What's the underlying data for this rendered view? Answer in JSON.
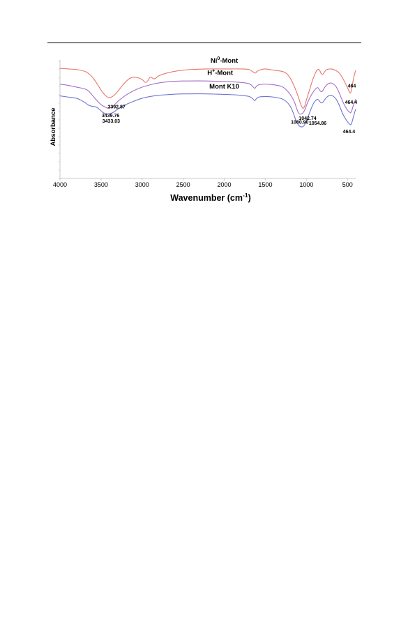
{
  "chart_data": {
    "type": "line",
    "xlabel": "Wavenumber (cm",
    "xlabel_superscript": "-1",
    "xlabel_suffix": ")",
    "ylabel": "Absorbance",
    "xlim": [
      4000,
      400
    ],
    "x_reversed": true,
    "x_ticks": [
      4000,
      3500,
      3000,
      2500,
      2000,
      1500,
      1000,
      500
    ],
    "y_ticks_labeled": false,
    "grid": false,
    "legend": "none",
    "series": [
      {
        "name": "Ni",
        "name_superscript": "0",
        "name_suffix": "-Mont",
        "color": "#e8756b",
        "points": [
          [
            4000,
            0.94
          ],
          [
            3900,
            0.935
          ],
          [
            3800,
            0.93
          ],
          [
            3700,
            0.915
          ],
          [
            3650,
            0.895
          ],
          [
            3600,
            0.86
          ],
          [
            3550,
            0.81
          ],
          [
            3500,
            0.755
          ],
          [
            3450,
            0.71
          ],
          [
            3400,
            0.69
          ],
          [
            3350,
            0.705
          ],
          [
            3300,
            0.74
          ],
          [
            3250,
            0.785
          ],
          [
            3200,
            0.825
          ],
          [
            3150,
            0.855
          ],
          [
            3100,
            0.865
          ],
          [
            3050,
            0.86
          ],
          [
            3000,
            0.845
          ],
          [
            2960,
            0.82
          ],
          [
            2930,
            0.835
          ],
          [
            2900,
            0.865
          ],
          [
            2850,
            0.85
          ],
          [
            2800,
            0.875
          ],
          [
            2700,
            0.9
          ],
          [
            2600,
            0.915
          ],
          [
            2500,
            0.925
          ],
          [
            2400,
            0.93
          ],
          [
            2200,
            0.935
          ],
          [
            2000,
            0.935
          ],
          [
            1800,
            0.935
          ],
          [
            1700,
            0.93
          ],
          [
            1650,
            0.91
          ],
          [
            1620,
            0.9
          ],
          [
            1600,
            0.915
          ],
          [
            1550,
            0.93
          ],
          [
            1500,
            0.935
          ],
          [
            1450,
            0.93
          ],
          [
            1400,
            0.925
          ],
          [
            1300,
            0.915
          ],
          [
            1250,
            0.9
          ],
          [
            1200,
            0.86
          ],
          [
            1150,
            0.79
          ],
          [
            1100,
            0.7
          ],
          [
            1070,
            0.635
          ],
          [
            1042.74,
            0.6
          ],
          [
            1020,
            0.62
          ],
          [
            1000,
            0.67
          ],
          [
            960,
            0.76
          ],
          [
            920,
            0.85
          ],
          [
            880,
            0.915
          ],
          [
            860,
            0.93
          ],
          [
            840,
            0.925
          ],
          [
            820,
            0.895
          ],
          [
            800,
            0.89
          ],
          [
            780,
            0.91
          ],
          [
            750,
            0.93
          ],
          [
            700,
            0.935
          ],
          [
            650,
            0.925
          ],
          [
            600,
            0.9
          ],
          [
            550,
            0.845
          ],
          [
            500,
            0.775
          ],
          [
            480,
            0.745
          ],
          [
            464,
            0.73
          ],
          [
            450,
            0.76
          ],
          [
            430,
            0.84
          ],
          [
            410,
            0.9
          ],
          [
            400,
            0.92
          ]
        ]
      },
      {
        "name": "H",
        "name_superscript": "+",
        "name_suffix": "-Mont",
        "color": "#a36fc9",
        "points": [
          [
            4000,
            0.805
          ],
          [
            3900,
            0.795
          ],
          [
            3800,
            0.78
          ],
          [
            3700,
            0.765
          ],
          [
            3650,
            0.745
          ],
          [
            3600,
            0.705
          ],
          [
            3550,
            0.665
          ],
          [
            3500,
            0.63
          ],
          [
            3450,
            0.61
          ],
          [
            3420,
            0.6
          ],
          [
            3380,
            0.605
          ],
          [
            3340,
            0.625
          ],
          [
            3300,
            0.655
          ],
          [
            3200,
            0.71
          ],
          [
            3100,
            0.75
          ],
          [
            3000,
            0.78
          ],
          [
            2900,
            0.8
          ],
          [
            2800,
            0.815
          ],
          [
            2700,
            0.825
          ],
          [
            2600,
            0.83
          ],
          [
            2500,
            0.832
          ],
          [
            2300,
            0.833
          ],
          [
            2100,
            0.83
          ],
          [
            1900,
            0.825
          ],
          [
            1800,
            0.82
          ],
          [
            1700,
            0.81
          ],
          [
            1660,
            0.79
          ],
          [
            1630,
            0.77
          ],
          [
            1610,
            0.785
          ],
          [
            1580,
            0.8
          ],
          [
            1500,
            0.805
          ],
          [
            1400,
            0.8
          ],
          [
            1300,
            0.785
          ],
          [
            1250,
            0.76
          ],
          [
            1200,
            0.72
          ],
          [
            1150,
            0.66
          ],
          [
            1120,
            0.6
          ],
          [
            1100,
            0.565
          ],
          [
            1080.9,
            0.55
          ],
          [
            1050,
            0.555
          ],
          [
            1020,
            0.585
          ],
          [
            990,
            0.64
          ],
          [
            950,
            0.7
          ],
          [
            910,
            0.745
          ],
          [
            880,
            0.77
          ],
          [
            860,
            0.775
          ],
          [
            840,
            0.755
          ],
          [
            820,
            0.74
          ],
          [
            800,
            0.75
          ],
          [
            780,
            0.775
          ],
          [
            750,
            0.8
          ],
          [
            710,
            0.815
          ],
          [
            680,
            0.81
          ],
          [
            640,
            0.785
          ],
          [
            600,
            0.73
          ],
          [
            560,
            0.66
          ],
          [
            520,
            0.605
          ],
          [
            490,
            0.575
          ],
          [
            470,
            0.565
          ],
          [
            464.4,
            0.56
          ],
          [
            450,
            0.575
          ],
          [
            430,
            0.62
          ],
          [
            410,
            0.66
          ],
          [
            400,
            0.675
          ]
        ]
      },
      {
        "name": "Mont K10",
        "name_superscript": "",
        "name_suffix": "",
        "color": "#6f73d1",
        "points": [
          [
            4000,
            0.705
          ],
          [
            3900,
            0.695
          ],
          [
            3800,
            0.685
          ],
          [
            3750,
            0.67
          ],
          [
            3700,
            0.65
          ],
          [
            3650,
            0.625
          ],
          [
            3600,
            0.615
          ],
          [
            3560,
            0.61
          ],
          [
            3520,
            0.59
          ],
          [
            3480,
            0.565
          ],
          [
            3450,
            0.555
          ],
          [
            3420,
            0.55
          ],
          [
            3400,
            0.552
          ],
          [
            3350,
            0.565
          ],
          [
            3300,
            0.59
          ],
          [
            3200,
            0.63
          ],
          [
            3100,
            0.66
          ],
          [
            3000,
            0.685
          ],
          [
            2900,
            0.7
          ],
          [
            2800,
            0.71
          ],
          [
            2700,
            0.715
          ],
          [
            2600,
            0.72
          ],
          [
            2500,
            0.722
          ],
          [
            2300,
            0.723
          ],
          [
            2100,
            0.72
          ],
          [
            1900,
            0.715
          ],
          [
            1800,
            0.71
          ],
          [
            1700,
            0.7
          ],
          [
            1660,
            0.685
          ],
          [
            1630,
            0.665
          ],
          [
            1610,
            0.68
          ],
          [
            1580,
            0.695
          ],
          [
            1500,
            0.7
          ],
          [
            1400,
            0.695
          ],
          [
            1300,
            0.68
          ],
          [
            1250,
            0.66
          ],
          [
            1200,
            0.62
          ],
          [
            1160,
            0.56
          ],
          [
            1130,
            0.5
          ],
          [
            1100,
            0.46
          ],
          [
            1080,
            0.445
          ],
          [
            1054.86,
            0.44
          ],
          [
            1030,
            0.45
          ],
          [
            1000,
            0.49
          ],
          [
            970,
            0.545
          ],
          [
            940,
            0.6
          ],
          [
            910,
            0.645
          ],
          [
            880,
            0.67
          ],
          [
            860,
            0.675
          ],
          [
            840,
            0.66
          ],
          [
            820,
            0.645
          ],
          [
            800,
            0.65
          ],
          [
            780,
            0.67
          ],
          [
            750,
            0.695
          ],
          [
            710,
            0.71
          ],
          [
            680,
            0.705
          ],
          [
            640,
            0.68
          ],
          [
            600,
            0.625
          ],
          [
            560,
            0.555
          ],
          [
            520,
            0.505
          ],
          [
            490,
            0.475
          ],
          [
            470,
            0.462
          ],
          [
            464.4,
            0.458
          ],
          [
            450,
            0.47
          ],
          [
            430,
            0.52
          ],
          [
            410,
            0.57
          ],
          [
            400,
            0.59
          ]
        ]
      }
    ],
    "annotations": [
      {
        "text": "3392.87",
        "x": 3392.87,
        "series": 0
      },
      {
        "text": "1042.74",
        "x": 1042.74,
        "series": 0
      },
      {
        "text": "464",
        "x": 464,
        "series": 0
      },
      {
        "text": "3439.76",
        "x": 3439.76,
        "series": 1
      },
      {
        "text": "1080.90",
        "x": 1080.9,
        "series": 1
      },
      {
        "text": "464.4",
        "x": 464.4,
        "series": 1
      },
      {
        "text": "3433.03",
        "x": 3433.03,
        "series": 2
      },
      {
        "text": "1054.86",
        "x": 1054.86,
        "series": 2
      },
      {
        "text": "464.4",
        "x": 464.4,
        "series": 2
      }
    ]
  }
}
